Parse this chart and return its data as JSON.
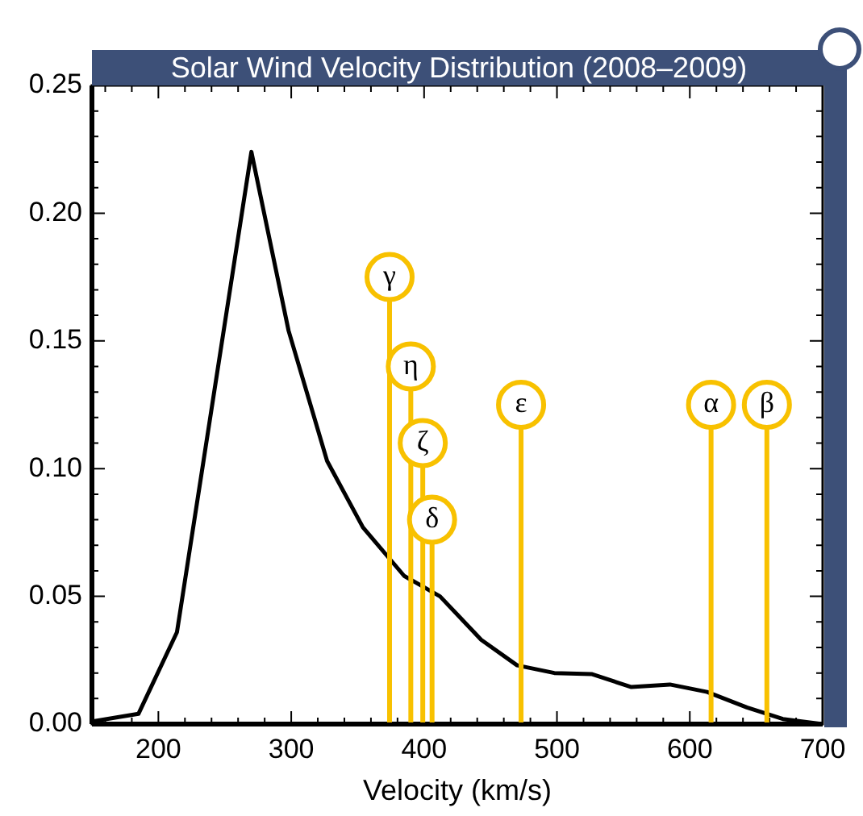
{
  "chart_data": {
    "type": "line",
    "title": "Solar Wind Velocity Distribution (2008–2009)",
    "xlabel": "Velocity (km/s)",
    "x": [
      150,
      185,
      214,
      270,
      298,
      327,
      354,
      385,
      412,
      443,
      470,
      498,
      526,
      556,
      585,
      613,
      643,
      670,
      700
    ],
    "series": [
      {
        "color": "#000000",
        "values": [
          0.001,
          0.004,
          0.036,
          0.224,
          0.154,
          0.103,
          0.077,
          0.058,
          0.05,
          0.033,
          0.023,
          0.02,
          0.0196,
          0.0145,
          0.0155,
          0.0126,
          0.0065,
          0.002,
          0.0
        ]
      }
    ],
    "xlim": [
      150,
      700
    ],
    "ylim": [
      0,
      0.25
    ],
    "xticks": [
      {
        "value": 160,
        "label": null
      },
      {
        "value": 180,
        "label": null
      },
      200,
      {
        "value": 220,
        "label": null
      },
      {
        "value": 240,
        "label": null
      },
      {
        "value": 260,
        "label": null
      },
      {
        "value": 280,
        "label": null
      },
      300,
      {
        "value": 320,
        "label": null
      },
      {
        "value": 340,
        "label": null
      },
      {
        "value": 360,
        "label": null
      },
      {
        "value": 380,
        "label": null
      },
      400,
      {
        "value": 420,
        "label": null
      },
      {
        "value": 440,
        "label": null
      },
      {
        "value": 460,
        "label": null
      },
      {
        "value": 480,
        "label": null
      },
      500,
      {
        "value": 520,
        "label": null
      },
      {
        "value": 540,
        "label": null
      },
      {
        "value": 560,
        "label": null
      },
      {
        "value": 580,
        "label": null
      },
      600,
      {
        "value": 620,
        "label": null
      },
      {
        "value": 640,
        "label": null
      },
      {
        "value": 660,
        "label": null
      },
      {
        "value": 680,
        "label": null
      },
      700
    ],
    "yticks": [
      {
        "value": 0,
        "label": "0.00"
      },
      {
        "value": 0.01,
        "label": null
      },
      {
        "value": 0.02,
        "label": null
      },
      {
        "value": 0.03,
        "label": null
      },
      {
        "value": 0.04,
        "label": null
      },
      {
        "value": 0.05,
        "label": "0.05"
      },
      {
        "value": 0.06,
        "label": null
      },
      {
        "value": 0.07,
        "label": null
      },
      {
        "value": 0.08,
        "label": null
      },
      {
        "value": 0.09,
        "label": null
      },
      {
        "value": 0.1,
        "label": "0.10"
      },
      {
        "value": 0.11,
        "label": null
      },
      {
        "value": 0.12,
        "label": null
      },
      {
        "value": 0.13,
        "label": null
      },
      {
        "value": 0.14,
        "label": null
      },
      {
        "value": 0.15,
        "label": "0.15"
      },
      {
        "value": 0.16,
        "label": null
      },
      {
        "value": 0.17,
        "label": null
      },
      {
        "value": 0.18,
        "label": null
      },
      {
        "value": 0.19,
        "label": null
      },
      {
        "value": 0.2,
        "label": "0.20"
      },
      {
        "value": 0.21,
        "label": null
      },
      {
        "value": 0.22,
        "label": null
      },
      {
        "value": 0.23,
        "label": null
      },
      {
        "value": 0.24,
        "label": null
      },
      {
        "value": 0.25,
        "label": "0.25"
      }
    ],
    "annotations": [
      {
        "text": "γ",
        "x": 374,
        "y": 0.175
      },
      {
        "text": "η",
        "x": 390,
        "y": 0.14
      },
      {
        "text": "ζ",
        "x": 399,
        "y": 0.11
      },
      {
        "text": "δ",
        "x": 406,
        "y": 0.08
      },
      {
        "text": "ε",
        "x": 473,
        "y": 0.125
      },
      {
        "text": "α",
        "x": 616,
        "y": 0.125
      },
      {
        "text": "β",
        "x": 658,
        "y": 0.125
      }
    ],
    "grid": false,
    "legend": false,
    "marker": "none",
    "line_style": "solid"
  }
}
